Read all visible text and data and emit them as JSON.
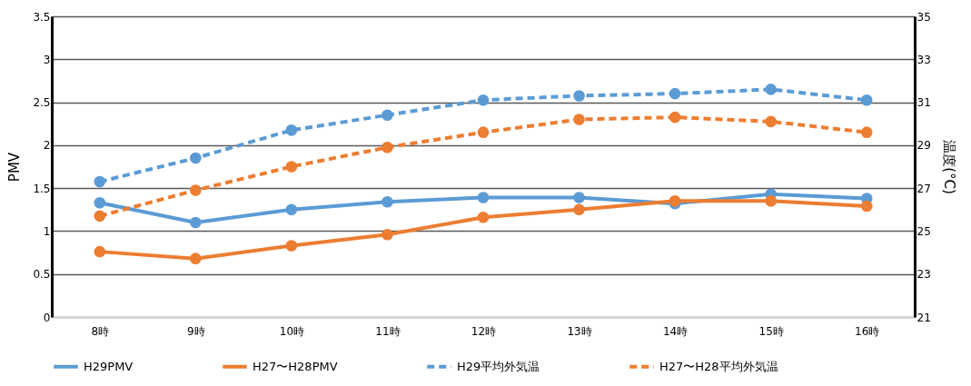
{
  "chart_data": {
    "type": "line",
    "categories": [
      "8時",
      "9時",
      "10時",
      "11時",
      "12時",
      "13時",
      "14時",
      "15時",
      "16時"
    ],
    "ylabel": "PMV",
    "y2label": "温度(°C)",
    "ylim": [
      0,
      3.5
    ],
    "yticks": [
      0,
      0.5,
      1,
      1.5,
      2,
      2.5,
      3,
      3.5
    ],
    "y2lim": [
      21,
      35
    ],
    "y2ticks": [
      21,
      23,
      25,
      27,
      29,
      31,
      33,
      35
    ],
    "grid": "y",
    "legend": "bottom",
    "marker": "circle",
    "series": [
      {
        "name": "H29PMV",
        "color": "#5b9bd5",
        "line_style": "solid",
        "values": [
          1.33,
          1.1,
          1.25,
          1.34,
          1.39,
          1.39,
          1.32,
          1.43,
          1.38
        ]
      },
      {
        "name": "H27〜H28PMV",
        "color": "#ed7d31",
        "line_style": "solid",
        "values": [
          0.76,
          0.68,
          0.83,
          0.96,
          1.16,
          1.25,
          1.35,
          1.35,
          1.29
        ]
      },
      {
        "name": "H29平均外気温",
        "color": "#5b9bd5",
        "line_style": "dashed",
        "axis": "y2",
        "values": [
          27.3,
          28.4,
          29.7,
          30.4,
          31.1,
          31.3,
          31.4,
          31.6,
          31.1
        ]
      },
      {
        "name": "H27〜H28平均外気温",
        "color": "#ed7d31",
        "line_style": "dashed",
        "axis": "y2",
        "values": [
          25.7,
          26.9,
          28.0,
          28.9,
          29.6,
          30.2,
          30.3,
          30.1,
          29.6
        ]
      }
    ]
  }
}
